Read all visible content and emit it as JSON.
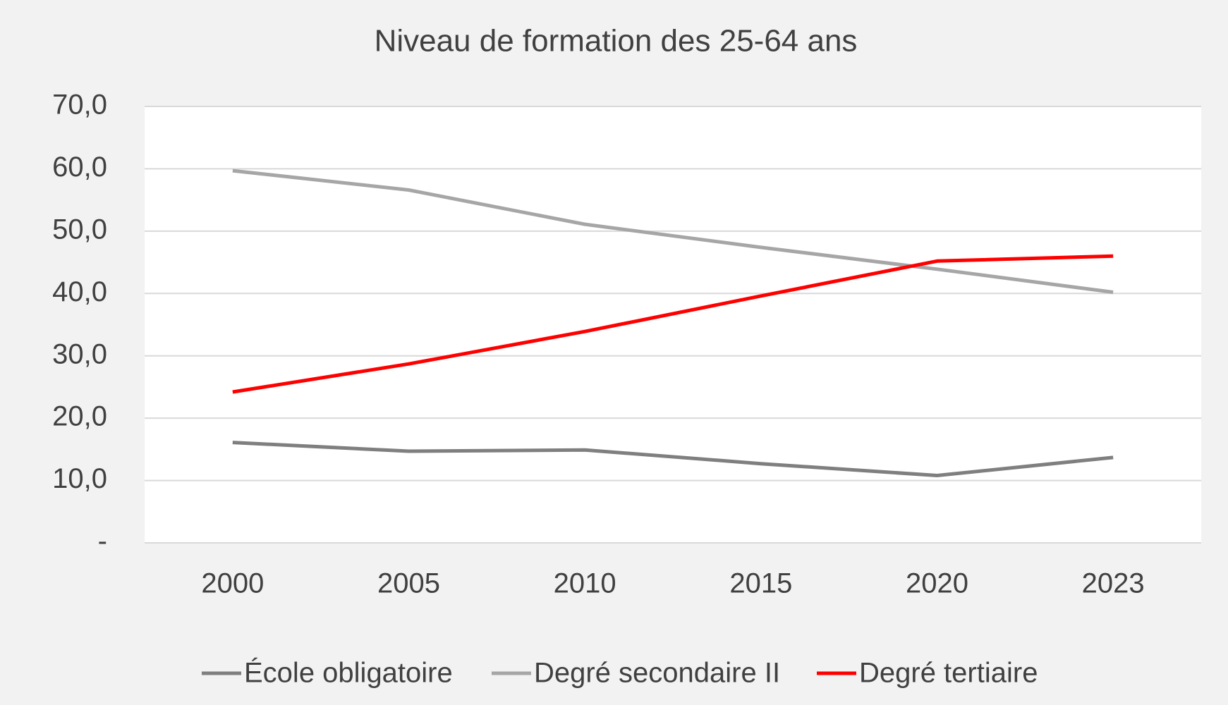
{
  "chart_data": {
    "type": "line",
    "title": "Niveau de formation des 25-64 ans",
    "categories": [
      "2000",
      "2005",
      "2010",
      "2015",
      "2020",
      "2023"
    ],
    "series": [
      {
        "name": "École obligatoire",
        "color": "#7f7f7f",
        "values": [
          16.1,
          14.7,
          14.9,
          12.7,
          10.8,
          13.7
        ]
      },
      {
        "name": "Degré secondaire II",
        "color": "#a6a6a6",
        "values": [
          59.7,
          56.6,
          51.1,
          47.4,
          43.9,
          40.2
        ]
      },
      {
        "name": "Degré tertiaire",
        "color": "#ff0000",
        "values": [
          24.2,
          28.7,
          33.9,
          39.6,
          45.2,
          46.0
        ]
      }
    ],
    "ylim": [
      0,
      70
    ],
    "yticks": [
      {
        "value": 0,
        "label": "-"
      },
      {
        "value": 10,
        "label": "10,0"
      },
      {
        "value": 20,
        "label": "20,0"
      },
      {
        "value": 30,
        "label": "30,0"
      },
      {
        "value": 40,
        "label": "40,0"
      },
      {
        "value": 50,
        "label": "50,0"
      },
      {
        "value": 60,
        "label": "60,0"
      },
      {
        "value": 70,
        "label": "70,0"
      }
    ],
    "grid": true,
    "legend": "bottom"
  }
}
